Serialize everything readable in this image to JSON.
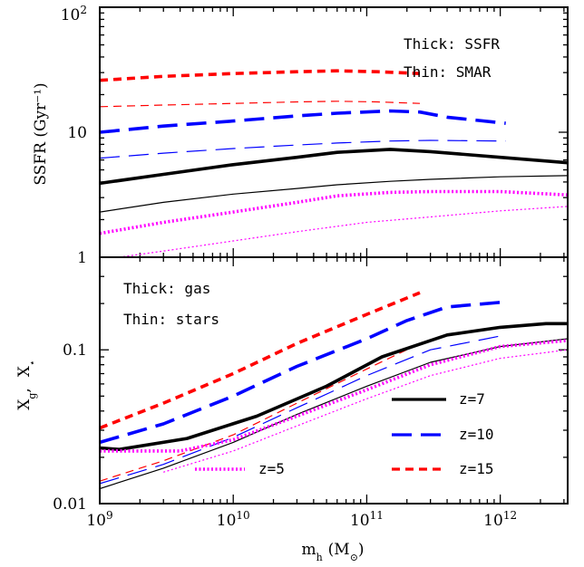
{
  "chart_data": [
    {
      "type": "line",
      "panel": "top",
      "ylabel": "SSFR (Gyr⁻¹)",
      "xscale": "log",
      "yscale": "log",
      "xlim": [
        1000000000.0,
        3200000000000.0
      ],
      "ylim": [
        1,
        100
      ],
      "ytick_labels": [
        {
          "value": 100,
          "base": "10",
          "exp": "2"
        },
        {
          "value": 10,
          "base": "10",
          "exp": ""
        },
        {
          "value": 1,
          "base": "1",
          "exp": ""
        }
      ],
      "annotations": [
        "Thick: SSFR",
        "Thin: SMAR"
      ],
      "series": [
        {
          "redshift": 15,
          "quantity": "SSFR",
          "color": "#ff0000",
          "style": "short-dash",
          "weight": "thick",
          "x": [
            1000000000.0,
            3000000000.0,
            10000000000.0,
            30000000000.0,
            60000000000.0,
            120000000000.0,
            250000000000.0
          ],
          "y": [
            26,
            28,
            29.5,
            30.5,
            31,
            30.5,
            29.5
          ]
        },
        {
          "redshift": 15,
          "quantity": "SMAR",
          "color": "#ff0000",
          "style": "short-dash",
          "weight": "thin",
          "x": [
            1000000000.0,
            3000000000.0,
            10000000000.0,
            30000000000.0,
            60000000000.0,
            120000000000.0,
            250000000000.0
          ],
          "y": [
            16,
            16.5,
            17,
            17.5,
            17.7,
            17.5,
            17
          ]
        },
        {
          "redshift": 10,
          "quantity": "SSFR",
          "color": "#0000ff",
          "style": "long-dash",
          "weight": "thick",
          "x": [
            1000000000.0,
            3000000000.0,
            10000000000.0,
            30000000000.0,
            60000000000.0,
            150000000000.0,
            250000000000.0,
            400000000000.0,
            1100000000000.0
          ],
          "y": [
            10,
            11.2,
            12.3,
            13.5,
            14.2,
            14.8,
            14.5,
            13.2,
            11.8
          ]
        },
        {
          "redshift": 10,
          "quantity": "SMAR",
          "color": "#0000ff",
          "style": "long-dash",
          "weight": "thin",
          "x": [
            1000000000.0,
            3000000000.0,
            10000000000.0,
            30000000000.0,
            60000000000.0,
            150000000000.0,
            300000000000.0,
            1100000000000.0
          ],
          "y": [
            6.2,
            6.8,
            7.4,
            7.9,
            8.2,
            8.5,
            8.6,
            8.5
          ]
        },
        {
          "redshift": 7,
          "quantity": "SSFR",
          "color": "#000000",
          "style": "solid",
          "weight": "thick",
          "x": [
            1000000000.0,
            3000000000.0,
            10000000000.0,
            30000000000.0,
            60000000000.0,
            150000000000.0,
            300000000000.0,
            1000000000000.0,
            3200000000000.0
          ],
          "y": [
            3.9,
            4.6,
            5.5,
            6.3,
            6.9,
            7.3,
            7.0,
            6.3,
            5.7
          ]
        },
        {
          "redshift": 7,
          "quantity": "SMAR",
          "color": "#000000",
          "style": "solid",
          "weight": "thin",
          "x": [
            1000000000.0,
            3000000000.0,
            10000000000.0,
            30000000000.0,
            60000000000.0,
            150000000000.0,
            300000000000.0,
            1000000000000.0,
            3200000000000.0
          ],
          "y": [
            2.3,
            2.75,
            3.2,
            3.55,
            3.8,
            4.05,
            4.2,
            4.4,
            4.5
          ]
        },
        {
          "redshift": 5,
          "quantity": "SSFR",
          "color": "#ff00ff",
          "style": "dotted",
          "weight": "thick",
          "x": [
            1000000000.0,
            3000000000.0,
            10000000000.0,
            30000000000.0,
            60000000000.0,
            150000000000.0,
            300000000000.0,
            1000000000000.0,
            3200000000000.0
          ],
          "y": [
            1.55,
            1.9,
            2.3,
            2.75,
            3.1,
            3.3,
            3.35,
            3.35,
            3.15
          ]
        },
        {
          "redshift": 5,
          "quantity": "SMAR",
          "color": "#ff00ff",
          "style": "dotted",
          "weight": "thin",
          "x": [
            1400000000.0,
            3000000000.0,
            10000000000.0,
            30000000000.0,
            100000000000.0,
            300000000000.0,
            1000000000000.0,
            3200000000000.0
          ],
          "y": [
            1.0,
            1.12,
            1.35,
            1.6,
            1.9,
            2.1,
            2.35,
            2.55
          ]
        }
      ]
    },
    {
      "type": "line",
      "panel": "bottom",
      "xlabel": "mₕ (M⊙)",
      "xlabel_parts": {
        "m": "m",
        "sub": "h",
        "unit": "(M",
        "unit_sub": "⊙",
        "close": ")"
      },
      "ylabel": "Xɡ,  X★",
      "ylabel_parts": {
        "xg": "X",
        "xg_sub": "g",
        "comma": ",",
        "xs": "X",
        "xs_sub": "⋆"
      },
      "xscale": "log",
      "yscale": "log",
      "xlim": [
        1000000000.0,
        3200000000000.0
      ],
      "ylim": [
        0.01,
        0.4
      ],
      "xtick_labels": [
        {
          "value": 1000000000.0,
          "base": "10",
          "exp": "9"
        },
        {
          "value": 10000000000.0,
          "base": "10",
          "exp": "10"
        },
        {
          "value": 100000000000.0,
          "base": "10",
          "exp": "11"
        },
        {
          "value": 1000000000000.0,
          "base": "10",
          "exp": "12"
        }
      ],
      "ytick_labels": [
        {
          "value": 0.1,
          "label": "0.1"
        },
        {
          "value": 0.01,
          "label": "0.01"
        }
      ],
      "annotations": [
        "Thick: gas",
        "Thin: stars"
      ],
      "legend": {
        "placement": "lower-right",
        "entries": [
          {
            "label": "z=7",
            "color": "#000000",
            "style": "solid"
          },
          {
            "label": "z=10",
            "color": "#0000ff",
            "style": "long-dash"
          },
          {
            "label": "z=15",
            "color": "#ff0000",
            "style": "short-dash"
          },
          {
            "label": "z=5",
            "color": "#ff00ff",
            "style": "dotted"
          }
        ]
      },
      "series": [
        {
          "redshift": 15,
          "quantity": "gas",
          "color": "#ff0000",
          "style": "short-dash",
          "weight": "thick",
          "x": [
            1000000000.0,
            3000000000.0,
            10000000000.0,
            30000000000.0,
            100000000000.0,
            250000000000.0
          ],
          "y": [
            0.031,
            0.045,
            0.07,
            0.11,
            0.17,
            0.235
          ]
        },
        {
          "redshift": 15,
          "quantity": "stars",
          "color": "#ff0000",
          "style": "short-dash",
          "weight": "thin",
          "x": [
            1000000000.0,
            3000000000.0,
            10000000000.0,
            30000000000.0,
            100000000000.0,
            250000000000.0
          ],
          "y": [
            0.014,
            0.019,
            0.028,
            0.045,
            0.075,
            0.11
          ]
        },
        {
          "redshift": 10,
          "quantity": "gas",
          "color": "#0000ff",
          "style": "long-dash",
          "weight": "thick",
          "x": [
            1000000000.0,
            3000000000.0,
            10000000000.0,
            30000000000.0,
            100000000000.0,
            200000000000.0,
            400000000000.0,
            1100000000000.0
          ],
          "y": [
            0.025,
            0.033,
            0.05,
            0.078,
            0.118,
            0.155,
            0.19,
            0.205
          ]
        },
        {
          "redshift": 10,
          "quantity": "stars",
          "color": "#0000ff",
          "style": "long-dash",
          "weight": "thin",
          "x": [
            1000000000.0,
            3000000000.0,
            10000000000.0,
            30000000000.0,
            100000000000.0,
            300000000000.0,
            1100000000000.0
          ],
          "y": [
            0.0135,
            0.018,
            0.027,
            0.042,
            0.068,
            0.1,
            0.125
          ]
        },
        {
          "redshift": 7,
          "quantity": "gas",
          "color": "#000000",
          "style": "solid",
          "weight": "thick",
          "x": [
            1000000000.0,
            1400000000.0,
            4500000000.0,
            15000000000.0,
            50000000000.0,
            130000000000.0,
            400000000000.0,
            1000000000000.0,
            2200000000000.0,
            3200000000000.0
          ],
          "y": [
            0.023,
            0.0225,
            0.0265,
            0.037,
            0.058,
            0.09,
            0.125,
            0.14,
            0.148,
            0.148
          ]
        },
        {
          "redshift": 7,
          "quantity": "stars",
          "color": "#000000",
          "style": "solid",
          "weight": "thin",
          "x": [
            1000000000.0,
            3000000000.0,
            10000000000.0,
            30000000000.0,
            100000000000.0,
            300000000000.0,
            1000000000000.0,
            3200000000000.0
          ],
          "y": [
            0.0125,
            0.017,
            0.025,
            0.038,
            0.058,
            0.083,
            0.105,
            0.118
          ]
        },
        {
          "redshift": 5,
          "quantity": "gas",
          "color": "#ff00ff",
          "style": "dotted",
          "weight": "thick",
          "x": [
            1000000000.0,
            4000000000.0,
            10000000000.0,
            30000000000.0,
            100000000000.0,
            300000000000.0,
            1000000000000.0,
            3200000000000.0
          ],
          "y": [
            0.022,
            0.022,
            0.026,
            0.037,
            0.055,
            0.08,
            0.105,
            0.115
          ]
        },
        {
          "redshift": 5,
          "quantity": "stars",
          "color": "#ff00ff",
          "style": "dotted",
          "weight": "thin",
          "x": [
            3000000000.0,
            10000000000.0,
            30000000000.0,
            100000000000.0,
            300000000000.0,
            1000000000000.0,
            3200000000000.0
          ],
          "y": [
            0.016,
            0.022,
            0.032,
            0.048,
            0.068,
            0.088,
            0.1
          ]
        }
      ]
    }
  ]
}
